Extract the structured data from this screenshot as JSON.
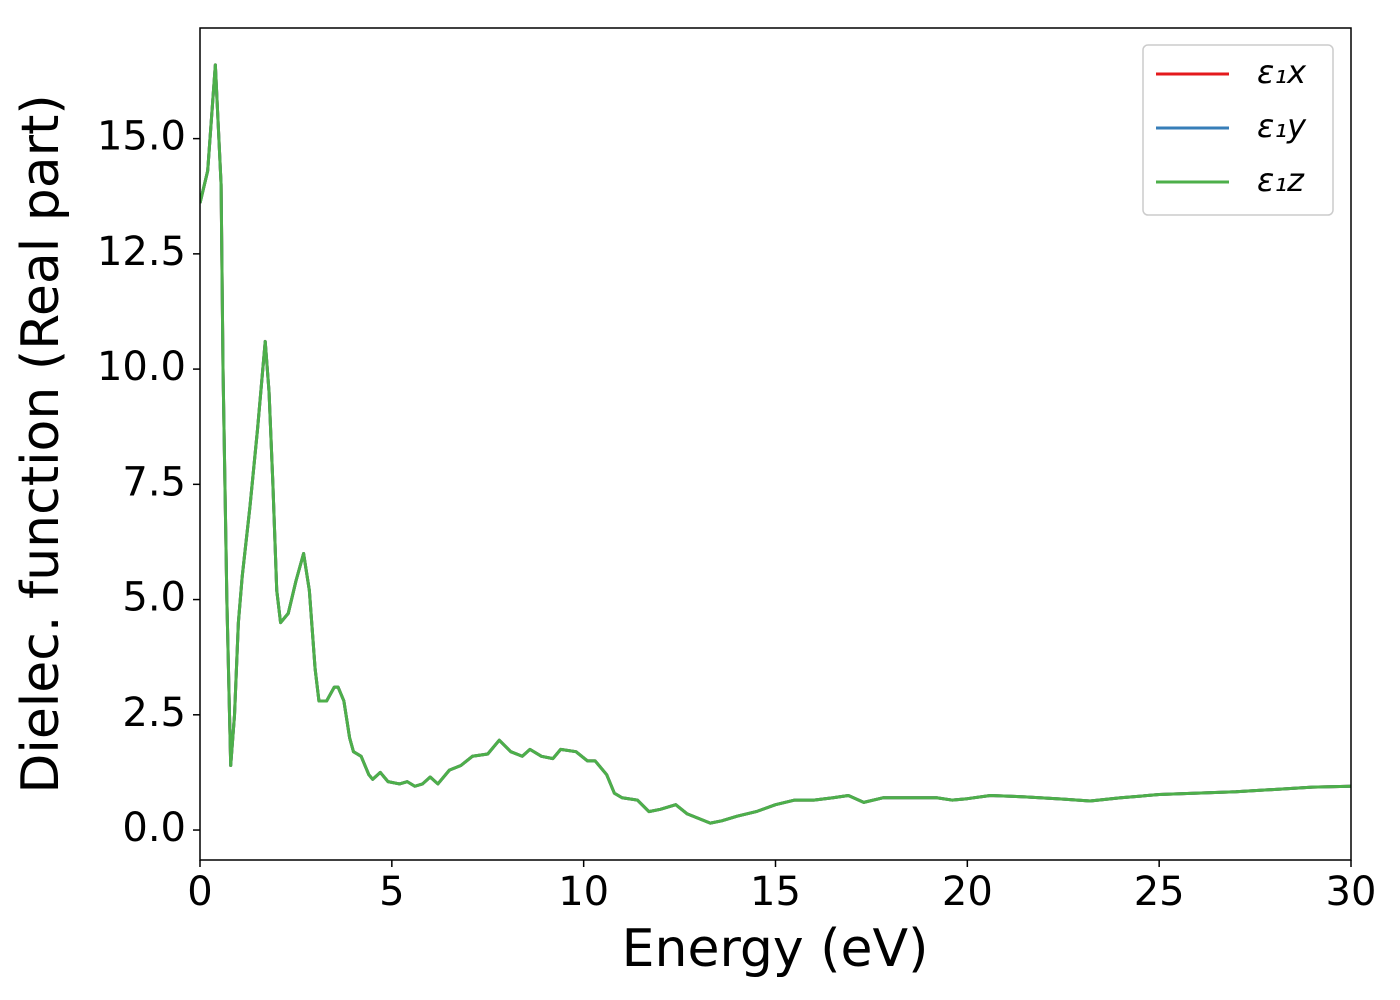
{
  "chart_data": {
    "type": "line",
    "xlabel": "Energy (eV)",
    "ylabel": "Dielec. function (Real part)",
    "x": [
      0,
      0.2,
      0.4,
      0.55,
      0.6,
      0.7,
      0.8,
      0.9,
      1.0,
      1.1,
      1.3,
      1.5,
      1.7,
      1.8,
      1.9,
      2.0,
      2.1,
      2.3,
      2.5,
      2.7,
      2.85,
      3.0,
      3.1,
      3.3,
      3.5,
      3.6,
      3.75,
      3.9,
      4.0,
      4.2,
      4.4,
      4.5,
      4.7,
      4.9,
      5.2,
      5.4,
      5.6,
      5.8,
      6.0,
      6.2,
      6.5,
      6.8,
      7.1,
      7.5,
      7.8,
      8.1,
      8.4,
      8.6,
      8.9,
      9.2,
      9.4,
      9.8,
      10.1,
      10.3,
      10.6,
      10.8,
      11.0,
      11.4,
      11.7,
      12.0,
      12.4,
      12.7,
      13.0,
      13.3,
      13.6,
      14.0,
      14.5,
      15.0,
      15.5,
      16.0,
      16.5,
      16.9,
      17.3,
      17.8,
      18.5,
      19.2,
      19.6,
      20.0,
      20.6,
      21.5,
      22.5,
      23.2,
      24.0,
      25.0,
      26.0,
      27.0,
      28.0,
      29.0,
      30.0
    ],
    "series": [
      {
        "name": "ε₁x",
        "color": "#e41a1c",
        "values": [
          13.6,
          14.3,
          16.6,
          14,
          10,
          5,
          1.4,
          2.5,
          4.5,
          5.5,
          7,
          8.7,
          10.6,
          9.5,
          7.5,
          5.2,
          4.5,
          4.7,
          5.4,
          6.0,
          5.2,
          3.5,
          2.8,
          2.8,
          3.1,
          3.1,
          2.8,
          2.0,
          1.7,
          1.6,
          1.2,
          1.1,
          1.25,
          1.05,
          1.0,
          1.05,
          0.95,
          1.0,
          1.15,
          1.0,
          1.3,
          1.4,
          1.6,
          1.65,
          1.95,
          1.7,
          1.6,
          1.75,
          1.6,
          1.55,
          1.75,
          1.7,
          1.5,
          1.5,
          1.2,
          0.8,
          0.7,
          0.65,
          0.4,
          0.45,
          0.55,
          0.35,
          0.25,
          0.15,
          0.2,
          0.3,
          0.4,
          0.55,
          0.65,
          0.65,
          0.7,
          0.75,
          0.6,
          0.7,
          0.7,
          0.7,
          0.65,
          0.68,
          0.75,
          0.72,
          0.67,
          0.63,
          0.7,
          0.77,
          0.8,
          0.83,
          0.88,
          0.93,
          0.95
        ]
      },
      {
        "name": "ε₁y",
        "color": "#377eb8",
        "values": [
          13.6,
          14.3,
          16.6,
          14,
          10,
          5,
          1.4,
          2.5,
          4.5,
          5.5,
          7,
          8.7,
          10.6,
          9.5,
          7.5,
          5.2,
          4.5,
          4.7,
          5.4,
          6.0,
          5.2,
          3.5,
          2.8,
          2.8,
          3.1,
          3.1,
          2.8,
          2.0,
          1.7,
          1.6,
          1.2,
          1.1,
          1.25,
          1.05,
          1.0,
          1.05,
          0.95,
          1.0,
          1.15,
          1.0,
          1.3,
          1.4,
          1.6,
          1.65,
          1.95,
          1.7,
          1.6,
          1.75,
          1.6,
          1.55,
          1.75,
          1.7,
          1.5,
          1.5,
          1.2,
          0.8,
          0.7,
          0.65,
          0.4,
          0.45,
          0.55,
          0.35,
          0.25,
          0.15,
          0.2,
          0.3,
          0.4,
          0.55,
          0.65,
          0.65,
          0.7,
          0.75,
          0.6,
          0.7,
          0.7,
          0.7,
          0.65,
          0.68,
          0.75,
          0.72,
          0.67,
          0.63,
          0.7,
          0.77,
          0.8,
          0.83,
          0.88,
          0.93,
          0.95
        ]
      },
      {
        "name": "ε₁z",
        "color": "#4daf4a",
        "values": [
          13.6,
          14.3,
          16.6,
          14,
          10,
          5,
          1.4,
          2.5,
          4.5,
          5.5,
          7,
          8.7,
          10.6,
          9.5,
          7.5,
          5.2,
          4.5,
          4.7,
          5.4,
          6.0,
          5.2,
          3.5,
          2.8,
          2.8,
          3.1,
          3.1,
          2.8,
          2.0,
          1.7,
          1.6,
          1.2,
          1.1,
          1.25,
          1.05,
          1.0,
          1.05,
          0.95,
          1.0,
          1.15,
          1.0,
          1.3,
          1.4,
          1.6,
          1.65,
          1.95,
          1.7,
          1.6,
          1.75,
          1.6,
          1.55,
          1.75,
          1.7,
          1.5,
          1.5,
          1.2,
          0.8,
          0.7,
          0.65,
          0.4,
          0.45,
          0.55,
          0.35,
          0.25,
          0.15,
          0.2,
          0.3,
          0.4,
          0.55,
          0.65,
          0.65,
          0.7,
          0.75,
          0.6,
          0.7,
          0.7,
          0.7,
          0.65,
          0.68,
          0.75,
          0.72,
          0.67,
          0.63,
          0.7,
          0.77,
          0.8,
          0.83,
          0.88,
          0.93,
          0.95
        ]
      }
    ],
    "xlim": [
      0,
      30
    ],
    "xticks": [
      0,
      5,
      10,
      15,
      20,
      25,
      30
    ],
    "ylim": [
      -0.65,
      17.4
    ],
    "yticks": [
      {
        "value": 0,
        "label": "0.0"
      },
      {
        "value": 2.5,
        "label": "2.5"
      },
      {
        "value": 5,
        "label": "5.0"
      },
      {
        "value": 7.5,
        "label": "7.5"
      },
      {
        "value": 10,
        "label": "10.0"
      },
      {
        "value": 12.5,
        "label": "12.5"
      },
      {
        "value": 15,
        "label": "15.0"
      }
    ],
    "grid": false,
    "legend": "upper right"
  }
}
